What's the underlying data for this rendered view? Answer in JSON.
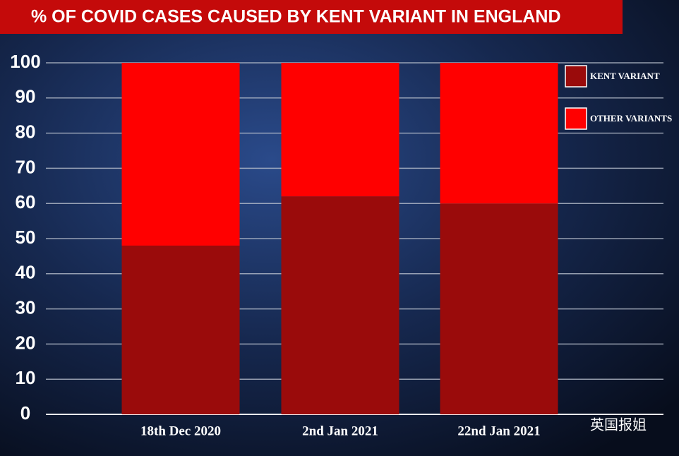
{
  "chart_data": {
    "type": "bar",
    "stacked": true,
    "title": "% OF COVID CASES CAUSED BY KENT VARIANT IN ENGLAND",
    "categories": [
      "18th Dec 2020",
      "2nd Jan 2021",
      "22nd Jan 2021"
    ],
    "series": [
      {
        "name": "KENT VARIANT",
        "color": "#9a0b0b",
        "values": [
          48,
          62,
          60
        ]
      },
      {
        "name": "OTHER VARIANTS",
        "color": "#ff0000",
        "values": [
          52,
          38,
          40
        ]
      }
    ],
    "ylim": [
      0,
      100
    ],
    "yticks": [
      0,
      10,
      20,
      30,
      40,
      50,
      60,
      70,
      80,
      90,
      100
    ],
    "grid": true,
    "legend": "top-right",
    "watermark": "英国报姐"
  }
}
